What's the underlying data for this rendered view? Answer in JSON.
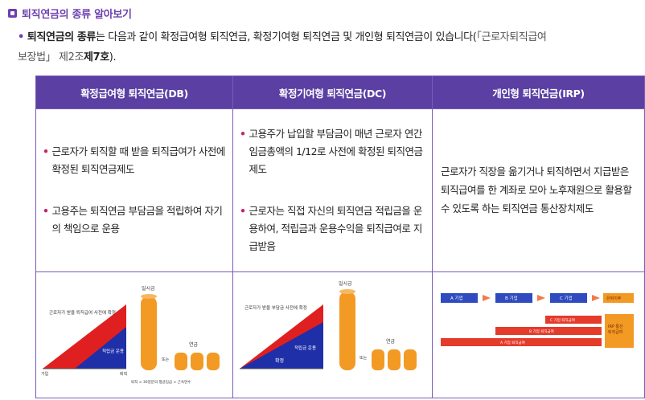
{
  "section": {
    "title": "퇴직연금의 종류 알아보기"
  },
  "intro": {
    "bullet": "•",
    "lead": "퇴직연금의 종류",
    "body": "는 다음과 같이 확정급여형 퇴직연금, 확정기여형 퇴직연금 및 개인형 퇴직연금이 있습니다(",
    "ref": "「근로자퇴직급여",
    "ref_line2": "보장법」 제2조",
    "ref_end": "제7호",
    "close": ")."
  },
  "table": {
    "headers": [
      "확정급여형 퇴직연금(DB)",
      "확정기여형 퇴직연금(DC)",
      "개인형 퇴직연금(IRP)"
    ],
    "db_items": [
      "근로자가 퇴직할 때 받을 퇴직급여가 사전에 확정된 퇴직연금제도",
      "고용주는 퇴직연금 부담금을 적립하여 자기의 책임으로 운용"
    ],
    "dc_items": [
      "고용주가 납입할 부담금이 매년 근로자 연간 임금총액의 1/12로 사전에 확정된 퇴직연금제도",
      "근로자는 직접 자신의 퇴직연금 적립금을 운용하여, 적립금과 운용수익을 퇴직급여로 지급받음"
    ],
    "irp_text": "근로자가 직장을 옮기거나 퇴직하면서 지급받은 퇴직급여를 한 계좌로 모아 노후재원으로 활용할 수 있도록 하는 퇴직연금 통산장치제도",
    "bullet": "•"
  },
  "charts": {
    "db": {
      "lump_label": "일시금",
      "pension_label": "연금",
      "or_label": "또는",
      "left_label": "근로자가 받을 퇴직급여 사전에 확정",
      "middle_label": "적립금 운용",
      "x_start": "가입",
      "x_end": "퇴직",
      "footer": "퇴직 × 30일분의 평균임금 × 근속연수"
    },
    "dc": {
      "lump_label": "일시금",
      "pension_label": "연금",
      "or_label": "또는",
      "left_label": "근로자가 받을 부담금 사전에 확정",
      "middle_label": "적립금 운용",
      "bottom_label": "확정"
    },
    "irp": {
      "job_a": "A 기업",
      "job_b": "B 기업",
      "job_c": "C 기업",
      "retire": "은퇴이후",
      "bar_c": "C 기업 퇴직급여",
      "bar_b": "B 기업 퇴직급여",
      "bar_a": "A 기업 퇴직급여",
      "box_label": "IRP 통산 퇴직급여",
      "accent": "#e43b2b",
      "accent_light": "#f07a4a"
    }
  },
  "colors": {
    "purple": "#6d3fb0",
    "header_bg": "#5b3fa3",
    "red": "#e02020",
    "blue": "#1f2fa8",
    "orange": "#f29a24"
  }
}
